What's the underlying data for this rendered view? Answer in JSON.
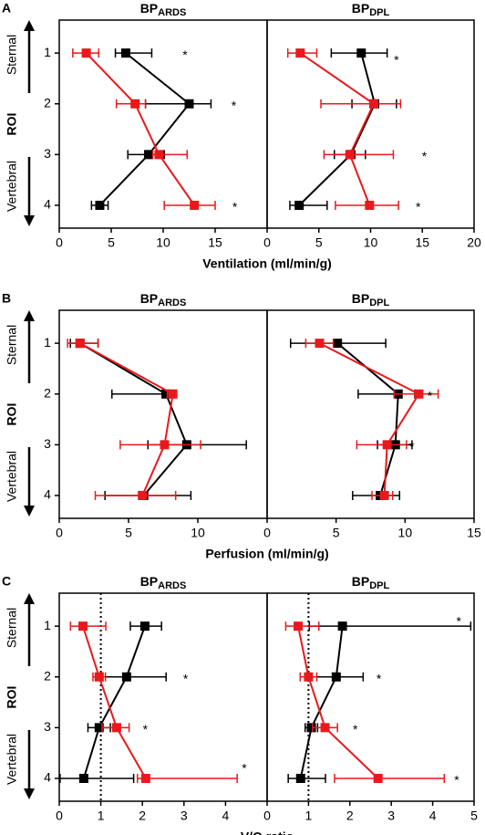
{
  "chart_data": [
    {
      "type": "line",
      "letter": "A",
      "xlabel": "Ventilation (ml/min/g)",
      "ylabel": "ROI",
      "y_top_label": "Sternal",
      "y_bottom_label": "Vertebral",
      "categories": [
        "1",
        "2",
        "3",
        "4"
      ],
      "subplots": [
        {
          "title": "BP",
          "title_subscript": "ARDS",
          "xlim": [
            0,
            20
          ],
          "xticks": [
            0,
            5,
            10,
            15
          ],
          "series": [
            {
              "color": "#000000",
              "values": [
                6.4,
                12.5,
                8.6,
                3.9
              ],
              "errors": [
                [
                  1.0,
                  2.5
                ],
                [
                  4.2,
                  2.1
                ],
                [
                  2.0,
                  1.5
                ],
                [
                  0.8,
                  0.8
                ]
              ]
            },
            {
              "color": "#e8191c",
              "values": [
                2.6,
                7.3,
                9.6,
                13.0
              ],
              "errors": [
                [
                  1.3,
                  1.2
                ],
                [
                  1.8,
                  1.0
                ],
                [
                  0.6,
                  2.7
                ],
                [
                  2.9,
                  2.0
                ]
              ]
            }
          ],
          "annotations": [
            {
              "text": "*",
              "x": 12.1,
              "y": 1
            },
            {
              "text": "*",
              "x": 16.8,
              "y": 2
            },
            {
              "text": "*",
              "x": 16.9,
              "y": 4
            }
          ]
        },
        {
          "title": "BP",
          "title_subscript": "DPL",
          "xlim": [
            0,
            20
          ],
          "xticks": [
            0,
            5,
            10,
            15,
            20
          ],
          "series": [
            {
              "color": "#000000",
              "values": [
                9.1,
                10.4,
                8.1,
                3.1
              ],
              "errors": [
                [
                  2.9,
                  2.5
                ],
                [
                  2.2,
                  2.1
                ],
                [
                  1.6,
                  1.4
                ],
                [
                  0.9,
                  2.7
                ]
              ]
            },
            {
              "color": "#e8191c",
              "values": [
                3.2,
                10.3,
                8.0,
                9.9
              ],
              "errors": [
                [
                  1.2,
                  1.6
                ],
                [
                  5.1,
                  2.6
                ],
                [
                  2.5,
                  4.2
                ],
                [
                  3.3,
                  2.8
                ]
              ]
            }
          ],
          "annotations": [
            {
              "text": "*",
              "x": 12.5,
              "y": 1.1
            },
            {
              "text": "*",
              "x": 15.2,
              "y": 3
            },
            {
              "text": "*",
              "x": 14.6,
              "y": 4
            }
          ]
        }
      ]
    },
    {
      "type": "line",
      "letter": "B",
      "xlabel": "Perfusion (ml/min/g)",
      "ylabel": "ROI",
      "y_top_label": "Sternal",
      "y_bottom_label": "Vertebral",
      "categories": [
        "1",
        "2",
        "3",
        "4"
      ],
      "subplots": [
        {
          "title": "BP",
          "title_subscript": "ARDS",
          "xlim": [
            0,
            15
          ],
          "xticks": [
            0,
            5,
            10
          ],
          "series": [
            {
              "color": "#000000",
              "values": [
                1.5,
                7.7,
                9.2,
                6.1
              ],
              "errors": [
                [
                  0.7,
                  1.3
                ],
                [
                  3.9,
                  0.5
                ],
                [
                  2.8,
                  4.3
                ],
                [
                  2.8,
                  3.4
                ]
              ]
            },
            {
              "color": "#e8191c",
              "values": [
                1.5,
                8.2,
                7.6,
                6.0
              ],
              "errors": [
                [
                  0.9,
                  1.3
                ],
                [
                  0.4,
                  0.2
                ],
                [
                  3.2,
                  2.6
                ],
                [
                  3.4,
                  2.4
                ]
              ]
            }
          ],
          "annotations": []
        },
        {
          "title": "BP",
          "title_subscript": "DPL",
          "xlim": [
            0,
            15
          ],
          "xticks": [
            0,
            5,
            10,
            15
          ],
          "series": [
            {
              "color": "#000000",
              "values": [
                5.1,
                9.5,
                9.3,
                8.2
              ],
              "errors": [
                [
                  3.4,
                  3.5
                ],
                [
                  2.9,
                  1.2
                ],
                [
                  1.3,
                  1.2
                ],
                [
                  2.0,
                  1.4
                ]
              ]
            },
            {
              "color": "#e8191c",
              "values": [
                3.8,
                11.0,
                8.7,
                8.5
              ],
              "errors": [
                [
                  1.0,
                  1.0
                ],
                [
                  1.8,
                  1.4
                ],
                [
                  2.2,
                  1.4
                ],
                [
                  0.9,
                  0.6
                ]
              ]
            }
          ],
          "annotations": [
            {
              "text": "*",
              "x": 11.8,
              "y": 2
            },
            {
              "text": "*",
              "x": 10.5,
              "y": 3
            }
          ]
        }
      ]
    },
    {
      "type": "line",
      "letter": "C",
      "xlabel": "V/Q ratio",
      "ylabel": "ROI",
      "y_top_label": "Sternal",
      "y_bottom_label": "Vertebral",
      "categories": [
        "1",
        "2",
        "3",
        "4"
      ],
      "subplots": [
        {
          "title": "BP",
          "title_subscript": "ARDS",
          "xlim": [
            0,
            5
          ],
          "xticks": [
            0,
            1,
            2,
            3,
            4
          ],
          "reference_x": 1,
          "series": [
            {
              "color": "#000000",
              "values": [
                2.06,
                1.62,
                0.96,
                0.59
              ],
              "errors": [
                [
                  0.35,
                  0.4
                ],
                [
                  0.57,
                  0.95
                ],
                [
                  0.27,
                  0.27
                ],
                [
                  0.57,
                  1.2
                ]
              ]
            },
            {
              "color": "#e8191c",
              "values": [
                0.57,
                0.96,
                1.38,
                2.08
              ],
              "errors": [
                [
                  0.3,
                  0.55
                ],
                [
                  0.15,
                  0.15
                ],
                [
                  0.35,
                  0.3
                ],
                [
                  0.2,
                  2.2
                ]
              ]
            }
          ],
          "annotations": [
            {
              "text": "*",
              "x": 3.04,
              "y": 2
            },
            {
              "text": "*",
              "x": 2.07,
              "y": 3
            },
            {
              "text": "*",
              "x": 4.45,
              "y": 3.76
            }
          ]
        },
        {
          "title": "BP",
          "title_subscript": "DPL",
          "xlim": [
            0,
            5
          ],
          "xticks": [
            0,
            1,
            2,
            3,
            4,
            5
          ],
          "reference_x": 1,
          "series": [
            {
              "color": "#000000",
              "values": [
                1.82,
                1.67,
                1.07,
                0.81
              ],
              "errors": [
                [
                  0.8,
                  3.1
                ],
                [
                  0.65,
                  0.65
                ],
                [
                  0.15,
                  0.15
                ],
                [
                  0.3,
                  0.6
                ]
              ]
            },
            {
              "color": "#e8191c",
              "values": [
                0.75,
                1.0,
                1.4,
                2.68
              ],
              "errors": [
                [
                  0.3,
                  0.5
                ],
                [
                  0.2,
                  0.2
                ],
                [
                  0.3,
                  0.3
                ],
                [
                  1.05,
                  1.6
                ]
              ]
            }
          ],
          "annotations": [
            {
              "text": "*",
              "x": 4.63,
              "y": 0.87
            },
            {
              "text": "*",
              "x": 2.7,
              "y": 2
            },
            {
              "text": "*",
              "x": 2.13,
              "y": 3
            },
            {
              "text": "*",
              "x": 4.58,
              "y": 4
            }
          ]
        }
      ]
    }
  ]
}
